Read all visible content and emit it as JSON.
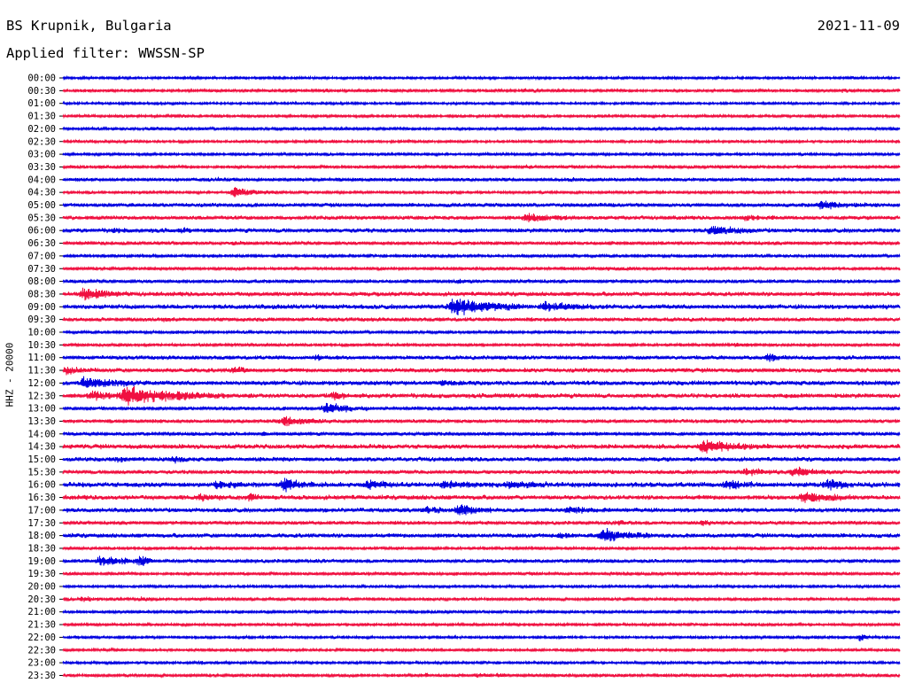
{
  "header": {
    "station": "BS Krupnik, Bulgaria",
    "date": "2021-11-09",
    "filter": "Applied filter: WWSSN-SP"
  },
  "chart_data": {
    "type": "line",
    "ylabel": "HHZ - 20000",
    "colors": [
      "#0000e0",
      "#f01040"
    ],
    "rows": [
      {
        "label": "00:00",
        "color": "#0000e0",
        "noise": 1.3,
        "events": [
          [
            0.2,
            0.3,
            2
          ],
          [
            0.94,
            0.3,
            2
          ]
        ]
      },
      {
        "label": "00:30",
        "color": "#f01040",
        "noise": 1.5,
        "events": [
          [
            0.31,
            0.3,
            2.5
          ],
          [
            0.55,
            0.5,
            1.5
          ],
          [
            0.93,
            0.3,
            2
          ]
        ]
      },
      {
        "label": "01:00",
        "color": "#0000e0",
        "noise": 1.2,
        "events": []
      },
      {
        "label": "01:30",
        "color": "#f01040",
        "noise": 1.4,
        "events": [
          [
            0.14,
            0.3,
            2
          ]
        ]
      },
      {
        "label": "02:00",
        "color": "#0000e0",
        "noise": 1.5,
        "events": [
          [
            0.1,
            0.5,
            1.5
          ],
          [
            0.7,
            0.3,
            2
          ]
        ]
      },
      {
        "label": "02:30",
        "color": "#f01040",
        "noise": 1.3,
        "events": [
          [
            0.32,
            0.3,
            2
          ]
        ]
      },
      {
        "label": "03:00",
        "color": "#0000e0",
        "noise": 1.4,
        "events": [
          [
            0.69,
            0.3,
            2
          ]
        ]
      },
      {
        "label": "03:30",
        "color": "#f01040",
        "noise": 1.6,
        "events": [
          [
            0.05,
            0.4,
            1.5
          ],
          [
            0.55,
            0.4,
            1.5
          ]
        ]
      },
      {
        "label": "04:00",
        "color": "#0000e0",
        "noise": 1.7,
        "events": [
          [
            0.18,
            0.6,
            1.8
          ],
          [
            0.6,
            0.5,
            1.5
          ]
        ]
      },
      {
        "label": "04:30",
        "color": "#f01040",
        "noise": 1.4,
        "events": [
          [
            0.2,
            1.5,
            6
          ]
        ]
      },
      {
        "label": "05:00",
        "color": "#0000e0",
        "noise": 2.0,
        "events": [
          [
            0.9,
            2,
            4
          ]
        ]
      },
      {
        "label": "05:30",
        "color": "#f01040",
        "noise": 2.0,
        "events": [
          [
            0.55,
            1.5,
            5
          ],
          [
            0.81,
            1.2,
            3
          ]
        ]
      },
      {
        "label": "06:00",
        "color": "#0000e0",
        "noise": 2.2,
        "events": [
          [
            0.06,
            0.4,
            3
          ],
          [
            0.14,
            0.4,
            3
          ],
          [
            0.77,
            1.5,
            5
          ]
        ]
      },
      {
        "label": "06:30",
        "color": "#f01040",
        "noise": 1.8,
        "events": [
          [
            0.2,
            0.5,
            2
          ]
        ]
      },
      {
        "label": "07:00",
        "color": "#0000e0",
        "noise": 1.5,
        "events": []
      },
      {
        "label": "07:30",
        "color": "#f01040",
        "noise": 1.6,
        "events": [
          [
            0.65,
            0.5,
            2
          ]
        ]
      },
      {
        "label": "08:00",
        "color": "#0000e0",
        "noise": 1.8,
        "events": [
          [
            0.47,
            0.5,
            3
          ]
        ]
      },
      {
        "label": "08:30",
        "color": "#f01040",
        "noise": 2.2,
        "events": [
          [
            0.02,
            1.5,
            8
          ],
          [
            0.38,
            0.3,
            2.5
          ]
        ]
      },
      {
        "label": "09:00",
        "color": "#0000e0",
        "noise": 2.4,
        "events": [
          [
            0.46,
            2.2,
            11
          ],
          [
            0.57,
            1.5,
            6
          ]
        ]
      },
      {
        "label": "09:30",
        "color": "#f01040",
        "noise": 2.0,
        "events": [
          [
            0.12,
            0.4,
            3
          ]
        ]
      },
      {
        "label": "10:00",
        "color": "#0000e0",
        "noise": 1.5,
        "events": []
      },
      {
        "label": "10:30",
        "color": "#f01040",
        "noise": 1.5,
        "events": [
          [
            0.8,
            0.8,
            2.5
          ]
        ]
      },
      {
        "label": "11:00",
        "color": "#0000e0",
        "noise": 2.0,
        "events": [
          [
            0.3,
            0.4,
            3
          ],
          [
            0.84,
            0.6,
            7
          ]
        ]
      },
      {
        "label": "11:30",
        "color": "#f01040",
        "noise": 2.2,
        "events": [
          [
            0.0,
            1,
            4
          ],
          [
            0.2,
            0.5,
            6
          ]
        ]
      },
      {
        "label": "12:00",
        "color": "#0000e0",
        "noise": 2.4,
        "events": [
          [
            0.02,
            2,
            6
          ],
          [
            0.45,
            1,
            2.5
          ]
        ]
      },
      {
        "label": "12:30",
        "color": "#f01040",
        "noise": 2.4,
        "events": [
          [
            0.03,
            1.5,
            5
          ],
          [
            0.07,
            3,
            10
          ],
          [
            0.32,
            0.6,
            5
          ]
        ]
      },
      {
        "label": "13:00",
        "color": "#0000e0",
        "noise": 1.8,
        "events": [
          [
            0.31,
            1.4,
            7
          ]
        ]
      },
      {
        "label": "13:30",
        "color": "#f01040",
        "noise": 1.8,
        "events": [
          [
            0.26,
            1.4,
            7
          ]
        ]
      },
      {
        "label": "14:00",
        "color": "#0000e0",
        "noise": 1.8,
        "events": [
          [
            0.24,
            0.3,
            2.5
          ],
          [
            0.58,
            0.3,
            3
          ]
        ]
      },
      {
        "label": "14:30",
        "color": "#f01040",
        "noise": 2.4,
        "events": [
          [
            0.76,
            2,
            8
          ]
        ]
      },
      {
        "label": "15:00",
        "color": "#0000e0",
        "noise": 2.2,
        "events": [
          [
            0.06,
            0.5,
            3
          ],
          [
            0.13,
            0.5,
            4
          ]
        ]
      },
      {
        "label": "15:30",
        "color": "#f01040",
        "noise": 2.0,
        "events": [
          [
            0.81,
            1.5,
            4
          ],
          [
            0.87,
            1.2,
            6
          ]
        ]
      },
      {
        "label": "16:00",
        "color": "#0000e0",
        "noise": 2.6,
        "events": [
          [
            0.18,
            1,
            5
          ],
          [
            0.26,
            1,
            9
          ],
          [
            0.36,
            1.2,
            5
          ],
          [
            0.45,
            1.5,
            4
          ],
          [
            0.53,
            1.3,
            4
          ],
          [
            0.79,
            0.8,
            6
          ],
          [
            0.91,
            0.8,
            7
          ]
        ]
      },
      {
        "label": "16:30",
        "color": "#f01040",
        "noise": 2.4,
        "events": [
          [
            0.16,
            1,
            4
          ],
          [
            0.22,
            0.6,
            5
          ],
          [
            0.88,
            1.5,
            7
          ]
        ]
      },
      {
        "label": "17:00",
        "color": "#0000e0",
        "noise": 2.2,
        "events": [
          [
            0.43,
            1,
            4
          ],
          [
            0.47,
            1,
            8
          ],
          [
            0.6,
            1.5,
            4
          ]
        ]
      },
      {
        "label": "17:30",
        "color": "#f01040",
        "noise": 1.8,
        "events": [
          [
            0.66,
            0.6,
            3
          ],
          [
            0.76,
            0.6,
            4
          ]
        ]
      },
      {
        "label": "18:00",
        "color": "#0000e0",
        "noise": 2.2,
        "events": [
          [
            0.59,
            0.5,
            5
          ],
          [
            0.64,
            1.5,
            8
          ]
        ]
      },
      {
        "label": "18:30",
        "color": "#f01040",
        "noise": 1.5,
        "events": []
      },
      {
        "label": "19:00",
        "color": "#0000e0",
        "noise": 1.8,
        "events": [
          [
            0.04,
            1.5,
            6
          ],
          [
            0.09,
            0.4,
            9
          ]
        ]
      },
      {
        "label": "19:30",
        "color": "#f01040",
        "noise": 1.6,
        "events": []
      },
      {
        "label": "20:00",
        "color": "#0000e0",
        "noise": 1.4,
        "events": []
      },
      {
        "label": "20:30",
        "color": "#f01040",
        "noise": 1.5,
        "events": [
          [
            0.02,
            0.6,
            4
          ],
          [
            0.09,
            0.4,
            4
          ]
        ]
      },
      {
        "label": "21:00",
        "color": "#0000e0",
        "noise": 1.5,
        "events": []
      },
      {
        "label": "21:30",
        "color": "#f01040",
        "noise": 1.4,
        "events": []
      },
      {
        "label": "22:00",
        "color": "#0000e0",
        "noise": 1.3,
        "events": [
          [
            0.95,
            0.3,
            10
          ]
        ]
      },
      {
        "label": "22:30",
        "color": "#f01040",
        "noise": 1.4,
        "events": []
      },
      {
        "label": "23:00",
        "color": "#0000e0",
        "noise": 1.4,
        "events": [
          [
            0.16,
            0.3,
            3
          ]
        ]
      },
      {
        "label": "23:30",
        "color": "#f01040",
        "noise": 1.6,
        "events": [
          [
            0.43,
            0.3,
            5
          ],
          [
            0.49,
            0.5,
            3
          ],
          [
            0.52,
            0.2,
            6
          ]
        ]
      }
    ]
  }
}
